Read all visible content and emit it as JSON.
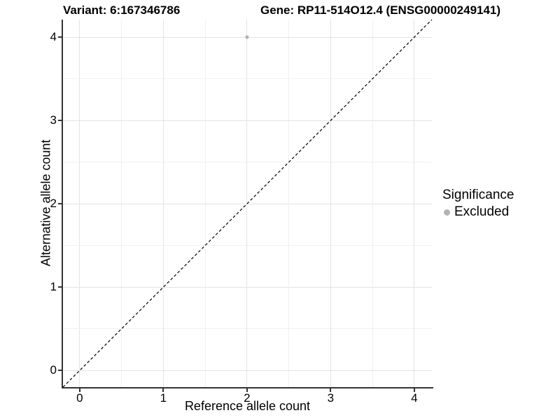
{
  "chart_data": {
    "type": "scatter",
    "titles": {
      "variant": "Variant: 6:167346786",
      "gene": "Gene: RP11-514O12.4 (ENSG00000249141)"
    },
    "xlabel": "Reference allele count",
    "ylabel": "Alternative allele count",
    "xlim": [
      -0.2,
      4.21
    ],
    "ylim": [
      -0.2,
      4.21
    ],
    "xticks": [
      0,
      1,
      2,
      3,
      4
    ],
    "yticks": [
      0,
      1,
      2,
      3,
      4
    ],
    "grid": "on",
    "grid_minor_step": 0.5,
    "points": [
      {
        "x": 2,
        "y": 4,
        "significance": "Excluded"
      }
    ],
    "identity_line": {
      "style": "dashed",
      "color": "#000000",
      "from": [
        -0.2,
        -0.2
      ],
      "to": [
        4.21,
        4.21
      ]
    },
    "legend": {
      "title": "Significance",
      "position": "right",
      "entries": [
        {
          "label": "Excluded",
          "color": "#b3b3b3",
          "marker": "circle"
        }
      ]
    },
    "colors": {
      "point": "#b3b3b3",
      "grid_major": "#e3e3e3",
      "grid_minor": "#f0f0f0",
      "axis": "#333333",
      "text": "#000000",
      "background": "#ffffff"
    }
  }
}
